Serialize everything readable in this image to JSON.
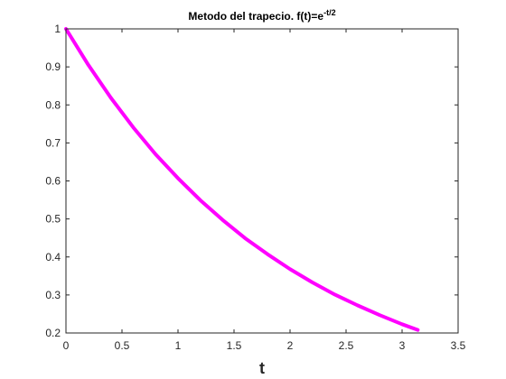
{
  "chart_data": {
    "type": "line",
    "title_base": "Metodo del trapecio. f(t)=e",
    "title_exponent": "-t/2",
    "xlabel": "t",
    "ylabel": "",
    "xlim": [
      0,
      3.5
    ],
    "ylim": [
      0.2,
      1
    ],
    "xticks": [
      "0",
      "0.5",
      "1",
      "1.5",
      "2",
      "2.5",
      "3",
      "3.5"
    ],
    "yticks": [
      "0.2",
      "0.3",
      "0.4",
      "0.5",
      "0.6",
      "0.7",
      "0.8",
      "0.9",
      "1"
    ],
    "grid": false,
    "series": [
      {
        "color": "#ff00ff",
        "x": [
          0,
          0.2,
          0.4,
          0.6,
          0.8,
          1.0,
          1.2,
          1.4,
          1.6,
          1.8,
          2.0,
          2.2,
          2.4,
          2.6,
          2.8,
          3.0,
          3.14
        ],
        "y": [
          1.0,
          0.905,
          0.819,
          0.741,
          0.67,
          0.607,
          0.549,
          0.497,
          0.449,
          0.407,
          0.368,
          0.333,
          0.301,
          0.273,
          0.247,
          0.223,
          0.208
        ]
      }
    ]
  }
}
